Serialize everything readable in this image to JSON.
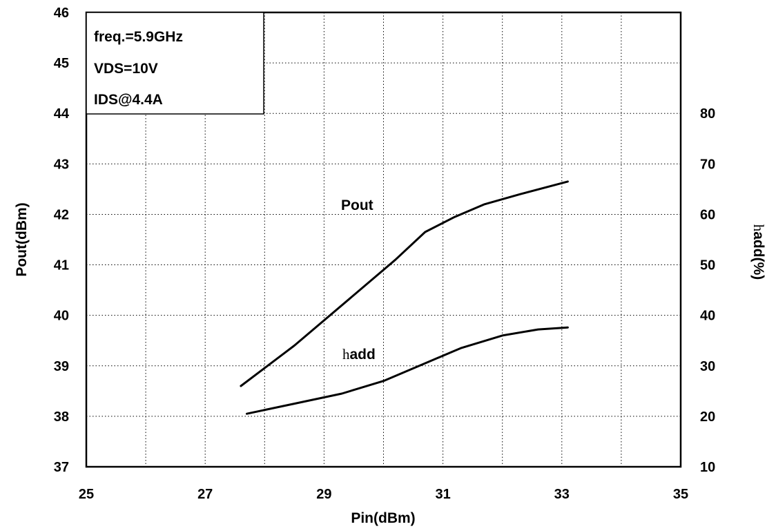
{
  "chart_data": {
    "type": "line",
    "title": "",
    "xlabel": "Pin(dBm)",
    "ylabel_left": "Pout(dBm)",
    "ylabel_right": "hadd(%)",
    "xlim": [
      25,
      35
    ],
    "ylim_left": [
      37,
      46
    ],
    "ylim_right": [
      10,
      80
    ],
    "x_ticks": [
      "25",
      "27",
      "29",
      "31",
      "33",
      "35"
    ],
    "y_left_ticks": [
      "37",
      "38",
      "39",
      "40",
      "41",
      "42",
      "43",
      "44",
      "45",
      "46"
    ],
    "y_right_ticks": [
      "10",
      "20",
      "30",
      "40",
      "50",
      "60",
      "70",
      "80"
    ],
    "grid": true,
    "annotation_box": [
      "freq.=5.9GHz",
      "VDS=10V",
      "IDS@4.4A"
    ],
    "series": [
      {
        "name": "Pout",
        "axis": "left",
        "x": [
          27.6,
          28.5,
          29.5,
          30.2,
          30.7,
          31.2,
          31.7,
          32.3,
          33.1
        ],
        "y": [
          38.6,
          39.4,
          40.4,
          41.1,
          41.65,
          41.95,
          42.2,
          42.4,
          42.65
        ]
      },
      {
        "name": "hadd",
        "axis": "right",
        "x": [
          27.7,
          28.5,
          29.3,
          30.0,
          30.7,
          31.3,
          32.0,
          32.6,
          33.1
        ],
        "y": [
          20.5,
          22.5,
          24.5,
          27.0,
          30.5,
          33.5,
          36.0,
          37.2,
          37.6
        ]
      }
    ],
    "labels": {
      "pout": "Pout",
      "hadd_h": "h",
      "hadd_rest": "add"
    }
  }
}
